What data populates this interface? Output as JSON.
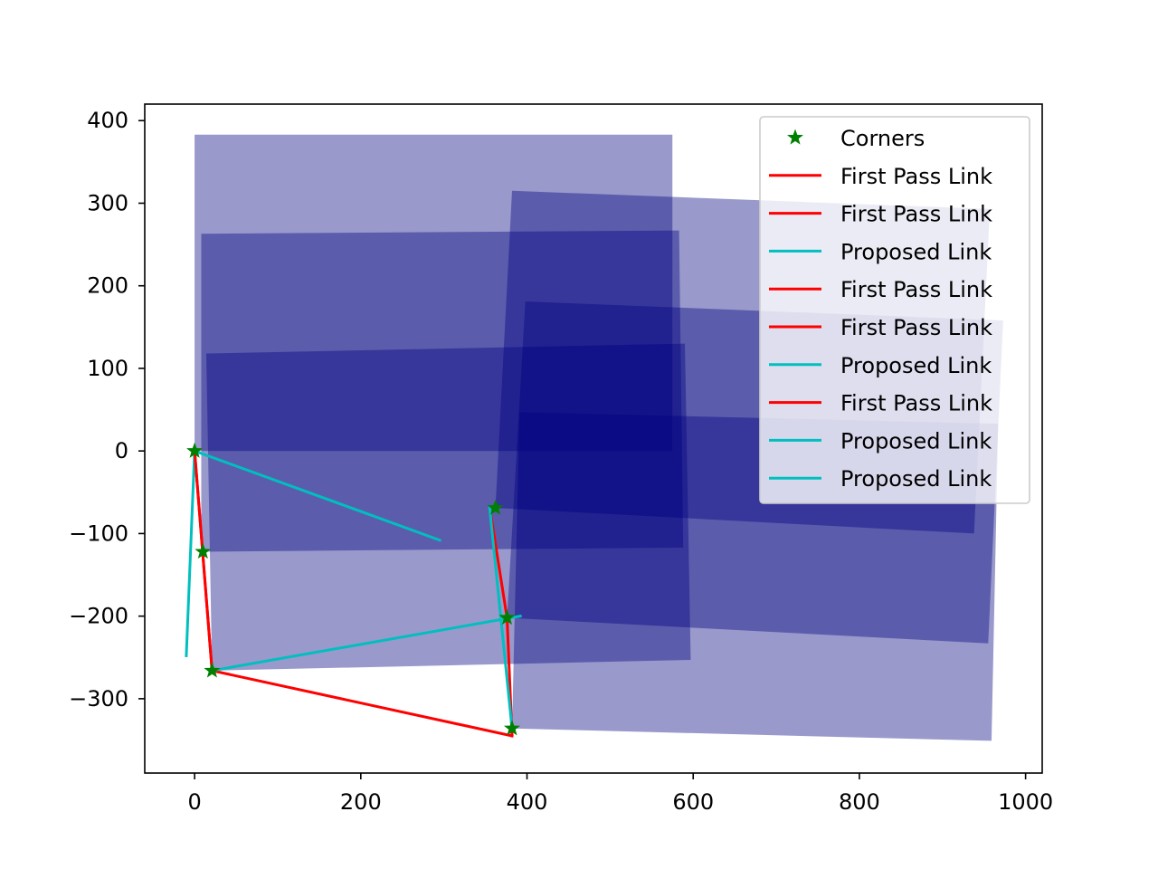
{
  "chart_data": {
    "type": "scatter",
    "title": "",
    "xlabel": "",
    "ylabel": "",
    "xlim": [
      -60,
      1020
    ],
    "ylim": [
      -390,
      420
    ],
    "xticks": [
      0,
      200,
      400,
      600,
      800,
      1000
    ],
    "yticks": [
      -300,
      -200,
      -100,
      0,
      100,
      200,
      300,
      400
    ],
    "xtick_labels": [
      "0",
      "200",
      "400",
      "600",
      "800",
      "1000"
    ],
    "ytick_labels": [
      "−300",
      "−200",
      "−100",
      "0",
      "100",
      "200",
      "300",
      "400"
    ],
    "grid": false,
    "legend_position": "top-right",
    "image_tiles": {
      "color": "#000080",
      "opacity": 0.4,
      "quads": [
        [
          [
            0,
            383
          ],
          [
            575,
            383
          ],
          [
            575,
            0
          ],
          [
            0,
            0
          ]
        ],
        [
          [
            8,
            263
          ],
          [
            583,
            267
          ],
          [
            588,
            -117
          ],
          [
            8,
            -122
          ]
        ],
        [
          [
            14,
            118
          ],
          [
            590,
            130
          ],
          [
            597,
            -253
          ],
          [
            21,
            -266
          ]
        ],
        [
          [
            382,
            315
          ],
          [
            957,
            293
          ],
          [
            938,
            -100
          ],
          [
            362,
            -69
          ]
        ],
        [
          [
            398,
            181
          ],
          [
            973,
            158
          ],
          [
            955,
            -233
          ],
          [
            376,
            -202
          ]
        ],
        [
          [
            391,
            47
          ],
          [
            967,
            33
          ],
          [
            959,
            -351
          ],
          [
            382,
            -336
          ]
        ]
      ]
    },
    "corners": {
      "name": "Corners",
      "color": "#008000",
      "points": [
        [
          0,
          0
        ],
        [
          10,
          -122
        ],
        [
          21,
          -266
        ],
        [
          362,
          -69
        ],
        [
          376,
          -202
        ],
        [
          382,
          -336
        ]
      ]
    },
    "links": [
      {
        "name": "First Pass Link",
        "color": "#ff0000",
        "points": [
          [
            0,
            0
          ],
          [
            21,
            -266
          ]
        ]
      },
      {
        "name": "First Pass Link",
        "color": "#ff0000",
        "points": [
          [
            21,
            -266
          ],
          [
            382,
            -345
          ]
        ]
      },
      {
        "name": "Proposed Link",
        "color": "#00bfbf",
        "points": [
          [
            0,
            0
          ],
          [
            295,
            -108
          ]
        ]
      },
      {
        "name": "First Pass Link",
        "color": "#ff0000",
        "points": [
          [
            355,
            -68
          ],
          [
            376,
            -202
          ]
        ]
      },
      {
        "name": "First Pass Link",
        "color": "#ff0000",
        "points": [
          [
            376,
            -202
          ],
          [
            382,
            -345
          ]
        ]
      },
      {
        "name": "Proposed Link",
        "color": "#00bfbf",
        "points": [
          [
            -10,
            -248
          ],
          [
            0,
            0
          ]
        ]
      },
      {
        "name": "First Pass Link",
        "color": "#ff0000",
        "points": [
          [
            0,
            0
          ],
          [
            21,
            -266
          ]
        ]
      },
      {
        "name": "Proposed Link",
        "color": "#00bfbf",
        "points": [
          [
            21,
            -266
          ],
          [
            392,
            -200
          ]
        ]
      },
      {
        "name": "Proposed Link",
        "color": "#00bfbf",
        "points": [
          [
            355,
            -68
          ],
          [
            382,
            -336
          ]
        ]
      }
    ],
    "legend": [
      {
        "label": "Corners",
        "kind": "marker",
        "color": "#008000"
      },
      {
        "label": "First Pass Link",
        "kind": "line",
        "color": "#ff0000"
      },
      {
        "label": "First Pass Link",
        "kind": "line",
        "color": "#ff0000"
      },
      {
        "label": "Proposed Link",
        "kind": "line",
        "color": "#00bfbf"
      },
      {
        "label": "First Pass Link",
        "kind": "line",
        "color": "#ff0000"
      },
      {
        "label": "First Pass Link",
        "kind": "line",
        "color": "#ff0000"
      },
      {
        "label": "Proposed Link",
        "kind": "line",
        "color": "#00bfbf"
      },
      {
        "label": "First Pass Link",
        "kind": "line",
        "color": "#ff0000"
      },
      {
        "label": "Proposed Link",
        "kind": "line",
        "color": "#00bfbf"
      },
      {
        "label": "Proposed Link",
        "kind": "line",
        "color": "#00bfbf"
      }
    ]
  }
}
